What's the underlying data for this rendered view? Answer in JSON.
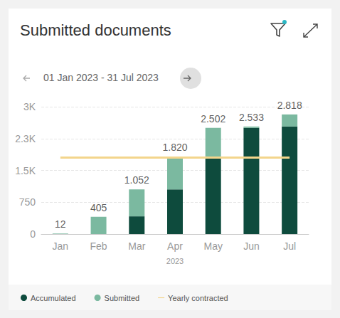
{
  "chart_data": {
    "type": "bar",
    "title": "Submitted documents",
    "subtitle": "01 Jan 2023 - 31 Jul 2023",
    "x_label": "2023",
    "stacked": true,
    "data_labels": true,
    "grid": true,
    "legend": "bottom-left",
    "categories": [
      "Jan",
      "Feb",
      "Mar",
      "Apr",
      "May",
      "Jun",
      "Jul"
    ],
    "series": [
      {
        "name": "Accumulated",
        "color": "#0e4b3d",
        "values": [
          0,
          0,
          417,
          1052,
          1820,
          2502,
          2533
        ]
      },
      {
        "name": "Submitted",
        "color": "#7bb9a0",
        "values": [
          12,
          405,
          635,
          768,
          682,
          31,
          285
        ]
      },
      {
        "name": "Yearly contracted",
        "type": "line",
        "line_style": "solid",
        "color": "#f3d58c",
        "values": [
          1800,
          1800,
          1800,
          1800,
          1800,
          1800,
          1800
        ]
      }
    ],
    "totals": {
      "values": [
        12,
        405,
        1052,
        1820,
        2502,
        2533,
        2818
      ],
      "value_labels": [
        "12",
        "405",
        "1.052",
        "1.820",
        "2.502",
        "2.533",
        "2.818"
      ]
    },
    "ylim": [
      0,
      3000
    ],
    "yticks": [
      0,
      750,
      {
        "value": 1500,
        "label": "1.5K"
      },
      {
        "value": 2250,
        "label": "2.3K"
      },
      {
        "value": 3000,
        "label": "3K"
      }
    ]
  }
}
